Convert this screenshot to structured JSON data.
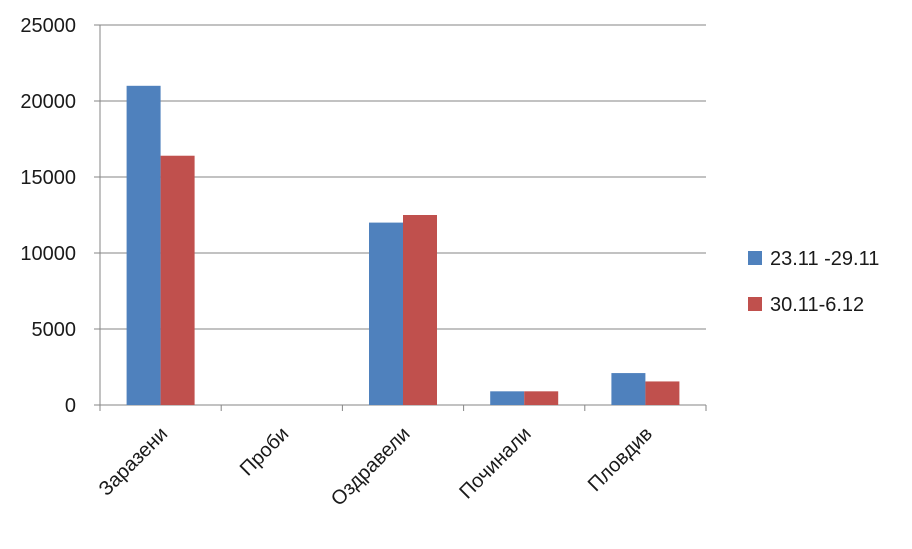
{
  "chart_data": {
    "type": "bar",
    "categories": [
      "Заразени",
      "Проби",
      "Оздравели",
      "Починали",
      "Пловдив"
    ],
    "series": [
      {
        "name": "23.11 -29.11",
        "color": "#4F81BD",
        "values": [
          21000,
          0,
          12000,
          900,
          2100
        ]
      },
      {
        "name": "30.11-6.12",
        "color": "#C0504D",
        "values": [
          16400,
          0,
          12500,
          900,
          1550
        ]
      }
    ],
    "ylim": [
      0,
      25000
    ],
    "yticks": [
      0,
      5000,
      10000,
      15000,
      20000,
      25000
    ],
    "grid": true,
    "legend_position": "right"
  }
}
